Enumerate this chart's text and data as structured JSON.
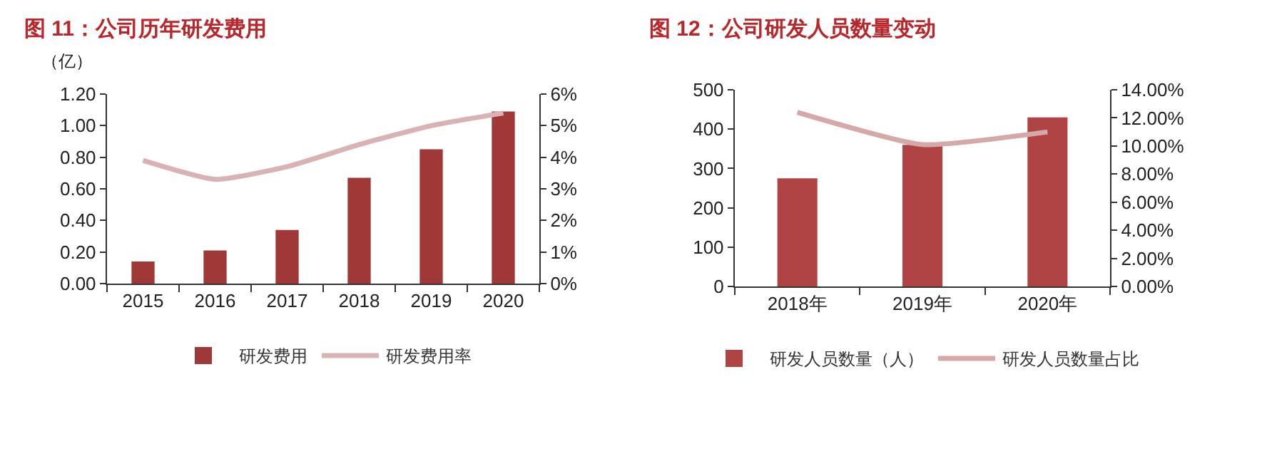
{
  "chart_data": [
    {
      "type": "bar",
      "title": "图 11：公司历年研发费用",
      "ylabel": "（亿）",
      "categories": [
        "2015",
        "2016",
        "2017",
        "2018",
        "2019",
        "2020"
      ],
      "series": [
        {
          "name": "研发费用",
          "color": "#a03838",
          "values": [
            0.14,
            0.21,
            0.34,
            0.67,
            0.85,
            1.09
          ]
        },
        {
          "name": "研发费用率",
          "type": "line",
          "axis": "y2",
          "color": "#d9b3b3",
          "values": [
            3.9,
            3.3,
            3.7,
            4.4,
            5.0,
            5.4
          ]
        }
      ],
      "ylim": [
        0,
        1.2
      ],
      "yticks": [
        {
          "value": 0,
          "label": "0.00"
        },
        {
          "value": 0.2,
          "label": "0.20"
        },
        {
          "value": 0.4,
          "label": "0.40"
        },
        {
          "value": 0.6,
          "label": "0.60"
        },
        {
          "value": 0.8,
          "label": "0.80"
        },
        {
          "value": 1.0,
          "label": "1.00"
        },
        {
          "value": 1.2,
          "label": "1.20"
        }
      ],
      "y2lim": [
        0,
        6
      ],
      "y2ticks": [
        {
          "value": 0,
          "label": "0%"
        },
        {
          "value": 1,
          "label": "1%"
        },
        {
          "value": 2,
          "label": "2%"
        },
        {
          "value": 3,
          "label": "3%"
        },
        {
          "value": 4,
          "label": "4%"
        },
        {
          "value": 5,
          "label": "5%"
        },
        {
          "value": 6,
          "label": "6%"
        }
      ],
      "legend": "bottom"
    },
    {
      "type": "bar",
      "title": "图 12：公司研发人员数量变动",
      "categories": [
        "2018年",
        "2019年",
        "2020年"
      ],
      "series": [
        {
          "name": "研发人员数量（人）",
          "color": "#b04444",
          "values": [
            275,
            360,
            430
          ]
        },
        {
          "name": "研发人员数量占比",
          "type": "line",
          "axis": "y2",
          "color": "#d6a9a9",
          "values": [
            12.4,
            10.1,
            11.0
          ]
        }
      ],
      "ylim": [
        0,
        500
      ],
      "yticks": [
        0,
        100,
        200,
        300,
        400,
        500
      ],
      "y2lim": [
        0,
        14
      ],
      "y2ticks": [
        {
          "value": 0,
          "label": "0.00%"
        },
        {
          "value": 2,
          "label": "2.00%"
        },
        {
          "value": 4,
          "label": "4.00%"
        },
        {
          "value": 6,
          "label": "6.00%"
        },
        {
          "value": 8,
          "label": "8.00%"
        },
        {
          "value": 10,
          "label": "10.00%"
        },
        {
          "value": 12,
          "label": "12.00%"
        },
        {
          "value": 14,
          "label": "14.00%"
        }
      ],
      "legend": "bottom"
    }
  ]
}
